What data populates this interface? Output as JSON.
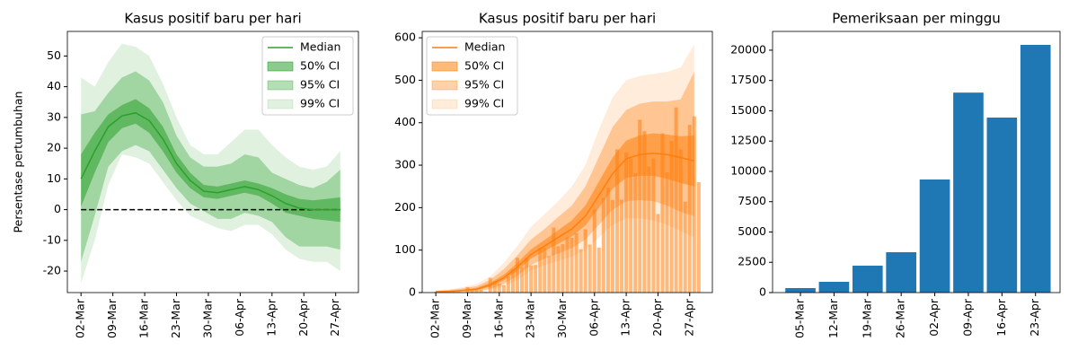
{
  "chart_data": [
    {
      "type": "band",
      "title": "Kasus positif baru per hari",
      "ylabel": "Persentase pertumbuhan",
      "x": [
        "02-Mar",
        "05-Mar",
        "08-Mar",
        "11-Mar",
        "14-Mar",
        "17-Mar",
        "20-Mar",
        "23-Mar",
        "26-Mar",
        "29-Mar",
        "01-Apr",
        "04-Apr",
        "07-Apr",
        "10-Apr",
        "13-Apr",
        "16-Apr",
        "19-Apr",
        "22-Apr",
        "25-Apr",
        "28-Apr"
      ],
      "xlim": [
        "28-Feb",
        "02-May"
      ],
      "xticks": [
        "02-Mar",
        "09-Mar",
        "16-Mar",
        "23-Mar",
        "30-Mar",
        "06-Apr",
        "13-Apr",
        "20-Apr",
        "27-Apr"
      ],
      "ylim": [
        -27,
        58
      ],
      "yticks": [
        -20,
        -10,
        0,
        10,
        20,
        30,
        40,
        50
      ],
      "reference_line": 0,
      "legend": "upper right",
      "series": [
        {
          "name": "Median",
          "color": "#2ca02c",
          "values": [
            10,
            19,
            27,
            30.5,
            31.5,
            29,
            23,
            15,
            9.5,
            6,
            5.5,
            6.5,
            7.5,
            6.5,
            4.5,
            2,
            0.5,
            0,
            0,
            0
          ]
        },
        {
          "name": "50% CI",
          "color": "#2ca02c",
          "alpha": 0.55,
          "low": [
            1,
            12,
            22,
            26.5,
            28,
            25,
            19,
            12,
            7,
            4,
            3.5,
            4.5,
            5.5,
            4.5,
            2,
            -1,
            -2,
            -3,
            -3.5,
            -4
          ],
          "high": [
            18,
            25,
            31,
            34,
            36,
            33,
            27,
            18,
            12,
            8,
            7.5,
            8.5,
            9.5,
            8.5,
            7,
            5,
            3.5,
            3,
            3.5,
            4
          ]
        },
        {
          "name": "95% CI",
          "color": "#2ca02c",
          "alpha": 0.35,
          "low": [
            -17,
            -2,
            14,
            19,
            21,
            19,
            13,
            7,
            2,
            -0.5,
            -3,
            -3,
            -1,
            -2,
            -4,
            -9,
            -12,
            -12,
            -12,
            -13
          ],
          "high": [
            31,
            32,
            38,
            43,
            45,
            42,
            35,
            24,
            17,
            14,
            14,
            15,
            18,
            17,
            12,
            10,
            8,
            7,
            9,
            13
          ]
        },
        {
          "name": "99% CI",
          "color": "#2ca02c",
          "alpha": 0.15,
          "low": [
            -24,
            -10,
            8,
            18,
            17,
            15,
            9,
            3,
            -2,
            -4,
            -6,
            -7,
            -5,
            -5,
            -8,
            -13,
            -16,
            -17,
            -17,
            -20
          ],
          "high": [
            43,
            40,
            48,
            54,
            53,
            50,
            41,
            30,
            21,
            18,
            18,
            22,
            26,
            26,
            21,
            17,
            14,
            13,
            14,
            19
          ]
        }
      ]
    },
    {
      "type": "band",
      "title": "Kasus positif baru per hari",
      "x": [
        "02-Mar",
        "05-Mar",
        "08-Mar",
        "11-Mar",
        "14-Mar",
        "17-Mar",
        "20-Mar",
        "23-Mar",
        "26-Mar",
        "29-Mar",
        "01-Apr",
        "04-Apr",
        "07-Apr",
        "10-Apr",
        "13-Apr",
        "16-Apr",
        "19-Apr",
        "22-Apr",
        "25-Apr",
        "28-Apr"
      ],
      "xlim": [
        "28-Feb",
        "02-May"
      ],
      "xticks": [
        "02-Mar",
        "09-Mar",
        "16-Mar",
        "23-Mar",
        "30-Mar",
        "06-Apr",
        "13-Apr",
        "20-Apr",
        "27-Apr"
      ],
      "ylim": [
        0,
        615
      ],
      "yticks": [
        0,
        100,
        200,
        300,
        400,
        500,
        600
      ],
      "legend": "upper left",
      "bars": {
        "color": "#ff7f0e",
        "alpha": 0.55,
        "x": [
          "02-Mar",
          "03-Mar",
          "04-Mar",
          "05-Mar",
          "06-Mar",
          "07-Mar",
          "08-Mar",
          "09-Mar",
          "10-Mar",
          "11-Mar",
          "12-Mar",
          "13-Mar",
          "14-Mar",
          "15-Mar",
          "16-Mar",
          "17-Mar",
          "18-Mar",
          "19-Mar",
          "20-Mar",
          "21-Mar",
          "22-Mar",
          "23-Mar",
          "24-Mar",
          "25-Mar",
          "26-Mar",
          "27-Mar",
          "28-Mar",
          "29-Mar",
          "30-Mar",
          "31-Mar",
          "01-Apr",
          "02-Apr",
          "03-Apr",
          "04-Apr",
          "05-Apr",
          "06-Apr",
          "07-Apr",
          "08-Apr",
          "09-Apr",
          "10-Apr",
          "11-Apr",
          "12-Apr",
          "13-Apr",
          "14-Apr",
          "15-Apr",
          "16-Apr",
          "17-Apr",
          "18-Apr",
          "19-Apr",
          "20-Apr",
          "21-Apr",
          "22-Apr",
          "23-Apr",
          "24-Apr",
          "25-Apr",
          "26-Apr",
          "27-Apr",
          "28-Apr",
          "29-Apr"
        ],
        "values": [
          2,
          0,
          0,
          0,
          2,
          2,
          0,
          13,
          8,
          6,
          7,
          2,
          35,
          27,
          21,
          17,
          38,
          55,
          82,
          60,
          81,
          64,
          65,
          106,
          105,
          86,
          153,
          109,
          114,
          130,
          129,
          140,
          102,
          149,
          113,
          196,
          106,
          223,
          247,
          218,
          337,
          219,
          330,
          316,
          281,
          407,
          380,
          297,
          316,
          185,
          375,
          283,
          357,
          436,
          337,
          214,
          395,
          415,
          260
        ]
      },
      "series": [
        {
          "name": "Median",
          "color": "#ff7f0e",
          "values": [
            2,
            3,
            5,
            8,
            18,
            35,
            60,
            90,
            110,
            130,
            150,
            180,
            230,
            280,
            315,
            325,
            328,
            325,
            318,
            310
          ]
        },
        {
          "name": "50% CI",
          "color": "#ff7f0e",
          "alpha": 0.55,
          "low": [
            1,
            2,
            4,
            6,
            14,
            29,
            52,
            80,
            98,
            115,
            132,
            158,
            200,
            245,
            270,
            275,
            275,
            268,
            258,
            250
          ],
          "high": [
            3,
            4,
            7,
            11,
            23,
            42,
            70,
            102,
            124,
            147,
            170,
            205,
            262,
            318,
            358,
            370,
            375,
            372,
            368,
            370
          ]
        },
        {
          "name": "95% CI",
          "color": "#ff7f0e",
          "alpha": 0.35,
          "low": [
            0,
            1,
            2,
            4,
            9,
            20,
            40,
            65,
            80,
            92,
            105,
            125,
            160,
            195,
            215,
            218,
            215,
            205,
            190,
            180
          ],
          "high": [
            4,
            6,
            10,
            15,
            30,
            55,
            88,
            125,
            150,
            178,
            205,
            250,
            320,
            390,
            430,
            445,
            450,
            450,
            455,
            520
          ]
        },
        {
          "name": "99% CI",
          "color": "#ff7f0e",
          "alpha": 0.15,
          "low": [
            0,
            0,
            1,
            2,
            6,
            14,
            30,
            52,
            65,
            75,
            85,
            100,
            130,
            160,
            175,
            175,
            170,
            160,
            145,
            130
          ],
          "high": [
            5,
            8,
            13,
            20,
            38,
            70,
            110,
            155,
            185,
            215,
            250,
            300,
            385,
            460,
            500,
            510,
            515,
            520,
            530,
            585
          ]
        }
      ]
    },
    {
      "type": "bar",
      "title": "Pemeriksaan per minggu",
      "color": "#1f77b4",
      "categories": [
        "05-Mar",
        "12-Mar",
        "19-Mar",
        "26-Mar",
        "02-Apr",
        "09-Apr",
        "16-Apr",
        "23-Apr"
      ],
      "values": [
        370,
        890,
        2220,
        3330,
        9330,
        16500,
        14440,
        20440
      ],
      "ylim": [
        0,
        21550
      ],
      "yticks": [
        0,
        2500,
        5000,
        7500,
        10000,
        12500,
        15000,
        17500,
        20000
      ]
    }
  ]
}
